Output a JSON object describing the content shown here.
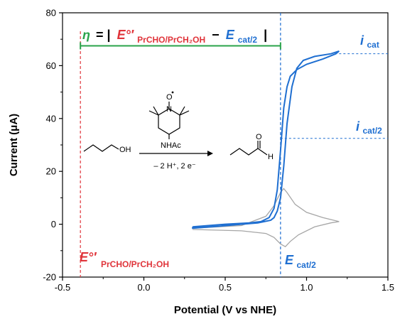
{
  "chart_data": {
    "type": "line",
    "xlabel": "Potential (V vs NHE)",
    "ylabel": "Current (μA)",
    "xlim": [
      -0.5,
      1.5
    ],
    "ylim": [
      -20,
      80
    ],
    "x_ticks": [
      "-0.5",
      "0.0",
      "0.5",
      "1.0",
      "1.5"
    ],
    "y_ticks": [
      "-20",
      "0",
      "20",
      "40",
      "60",
      "80"
    ],
    "grid": false,
    "colors": {
      "catalytic": "#1f6fd1",
      "background": "#a6a6a6",
      "e_ref": "#e0343a",
      "eta": "#2aa34a"
    },
    "series": [
      {
        "id": "catalytic",
        "x": [
          0.3,
          0.5,
          0.65,
          0.72,
          0.77,
          0.8,
          0.82,
          0.84,
          0.86,
          0.88,
          0.9,
          0.94,
          1.0,
          1.1,
          1.18,
          1.2,
          1.15,
          1.05,
          0.98,
          0.94,
          0.91,
          0.88,
          0.86,
          0.84,
          0.82,
          0.8,
          0.78,
          0.74,
          0.7,
          0.6,
          0.45,
          0.3,
          0.3
        ],
        "y": [
          -1,
          0,
          0.5,
          1,
          2.5,
          6,
          13,
          28,
          44,
          52,
          56,
          58.5,
          60.5,
          62.5,
          64.5,
          65.5,
          64.5,
          63.5,
          62,
          59,
          52,
          38,
          22,
          10,
          5,
          2.5,
          1.5,
          1,
          0.5,
          0,
          -0.8,
          -1.5,
          -1
        ]
      },
      {
        "id": "background",
        "x": [
          0.3,
          0.6,
          0.75,
          0.8,
          0.84,
          0.87,
          0.9,
          0.95,
          1.05,
          1.15,
          1.2,
          1.1,
          1.0,
          0.93,
          0.88,
          0.86,
          0.84,
          0.8,
          0.75,
          0.6,
          0.3
        ],
        "y": [
          -2,
          -2.5,
          -3.5,
          -5,
          -7.5,
          -8.5,
          -6.5,
          -4,
          -1,
          0.5,
          1,
          2.5,
          4.5,
          7.5,
          12,
          13.5,
          12,
          7,
          3,
          -0.5,
          -1.5
        ]
      }
    ],
    "annotations": {
      "i_cat": {
        "symbol": "i",
        "sub": "cat",
        "y": 64.5
      },
      "i_cat2": {
        "symbol": "i",
        "sub": "cat/2",
        "y": 32.5
      },
      "e_cat2": {
        "symbol": "E",
        "sub": "cat/2",
        "x": 0.84
      },
      "e_ref": {
        "symbol": "E°′",
        "sub": "PrCHO/PrCH₂OH",
        "x": -0.39
      },
      "eta": {
        "symbol": "η",
        "eq": "= |",
        "e_sym": "E°′",
        "e_sub": "PrCHO/PrCH₂OH",
        "minus": "−",
        "cat_sym": "E",
        "cat_sub": "cat/2",
        "close": "|",
        "y": 67.5
      }
    },
    "scheme": {
      "reactant_label": "OH",
      "product_label": "H",
      "product_carbonyl": "O",
      "catalyst_radical": "O",
      "catalyst_nitrogen": "N",
      "catalyst_sub": "NHAc",
      "conditions": "– 2 H⁺, 2 e⁻"
    }
  }
}
